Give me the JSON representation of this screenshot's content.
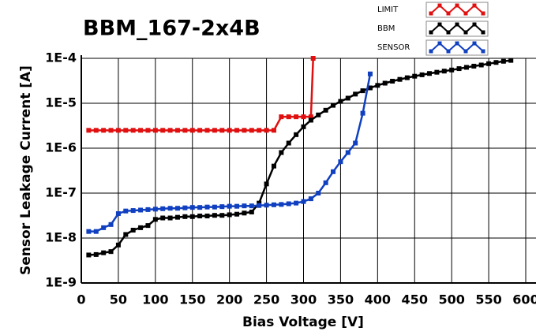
{
  "chart_data": {
    "type": "line",
    "title": "BBM_167-2x4B",
    "x_label": "Bias Voltage [V]",
    "y_label": "Sensor Leakage Current [A]",
    "xlim": [
      0,
      600
    ],
    "xticks": [
      0,
      50,
      100,
      150,
      200,
      250,
      300,
      350,
      400,
      450,
      500,
      550,
      600
    ],
    "ylim": [
      1e-09,
      0.0001
    ],
    "log_y": true,
    "yticks": [
      {
        "value": 1e-09,
        "label": "1E-9"
      },
      {
        "value": 1e-08,
        "label": "1E-8"
      },
      {
        "value": 1e-07,
        "label": "1E-7"
      },
      {
        "value": 1e-06,
        "label": "1E-6"
      },
      {
        "value": 1e-05,
        "label": "1E-5"
      },
      {
        "value": 0.0001,
        "label": "1E-4"
      }
    ],
    "grid": true,
    "legend": "top-right",
    "series": [
      {
        "name": "LIMIT",
        "color": "#e01010",
        "x": [
          10,
          20,
          30,
          40,
          50,
          60,
          70,
          80,
          90,
          100,
          110,
          120,
          130,
          140,
          150,
          160,
          170,
          180,
          190,
          200,
          210,
          220,
          230,
          240,
          250,
          260,
          270,
          280,
          290,
          300,
          310,
          313
        ],
        "values": [
          2.5e-06,
          2.5e-06,
          2.5e-06,
          2.5e-06,
          2.5e-06,
          2.5e-06,
          2.5e-06,
          2.5e-06,
          2.5e-06,
          2.5e-06,
          2.5e-06,
          2.5e-06,
          2.5e-06,
          2.5e-06,
          2.5e-06,
          2.5e-06,
          2.5e-06,
          2.5e-06,
          2.5e-06,
          2.5e-06,
          2.5e-06,
          2.5e-06,
          2.5e-06,
          2.5e-06,
          2.5e-06,
          2.5e-06,
          5e-06,
          5e-06,
          5e-06,
          5e-06,
          5e-06,
          0.0001
        ]
      },
      {
        "name": "BBM",
        "color": "#000000",
        "x": [
          10,
          20,
          30,
          40,
          50,
          60,
          70,
          80,
          90,
          100,
          110,
          120,
          130,
          140,
          150,
          160,
          170,
          180,
          190,
          200,
          210,
          220,
          230,
          240,
          250,
          260,
          270,
          280,
          290,
          300,
          310,
          320,
          330,
          340,
          350,
          360,
          370,
          380,
          390,
          400,
          410,
          420,
          430,
          440,
          450,
          460,
          470,
          480,
          490,
          500,
          510,
          520,
          530,
          540,
          550,
          560,
          570,
          580
        ],
        "values": [
          4.2e-09,
          4.3e-09,
          4.7e-09,
          5e-09,
          7e-09,
          1.2e-08,
          1.5e-08,
          1.7e-08,
          1.9e-08,
          2.6e-08,
          2.8e-08,
          2.8e-08,
          2.9e-08,
          3e-08,
          3e-08,
          3.1e-08,
          3.1e-08,
          3.2e-08,
          3.2e-08,
          3.3e-08,
          3.4e-08,
          3.6e-08,
          3.8e-08,
          6e-08,
          1.6e-07,
          4e-07,
          8e-07,
          1.3e-06,
          2e-06,
          3e-06,
          4.2e-06,
          5.5e-06,
          7e-06,
          9e-06,
          1.1e-05,
          1.3e-05,
          1.6e-05,
          1.9e-05,
          2.2e-05,
          2.5e-05,
          2.8e-05,
          3.1e-05,
          3.4e-05,
          3.7e-05,
          4e-05,
          4.3e-05,
          4.6e-05,
          4.9e-05,
          5.2e-05,
          5.5e-05,
          5.9e-05,
          6.3e-05,
          6.7e-05,
          7.1e-05,
          7.6e-05,
          8.1e-05,
          8.6e-05,
          9e-05
        ]
      },
      {
        "name": "SENSOR",
        "color": "#1040c0",
        "x": [
          10,
          20,
          30,
          40,
          50,
          60,
          70,
          80,
          90,
          100,
          110,
          120,
          130,
          140,
          150,
          160,
          170,
          180,
          190,
          200,
          210,
          220,
          230,
          240,
          250,
          260,
          270,
          280,
          290,
          300,
          310,
          320,
          330,
          340,
          350,
          360,
          370,
          380,
          390
        ],
        "values": [
          1.4e-08,
          1.4e-08,
          1.7e-08,
          2e-08,
          3.5e-08,
          4e-08,
          4.1e-08,
          4.2e-08,
          4.3e-08,
          4.4e-08,
          4.5e-08,
          4.6e-08,
          4.6e-08,
          4.7e-08,
          4.8e-08,
          4.8e-08,
          4.9e-08,
          4.9e-08,
          5e-08,
          5.1e-08,
          5.1e-08,
          5.2e-08,
          5.2e-08,
          5.3e-08,
          5.4e-08,
          5.5e-08,
          5.6e-08,
          5.8e-08,
          6e-08,
          6.5e-08,
          7.5e-08,
          1e-07,
          1.7e-07,
          3e-07,
          5e-07,
          8e-07,
          1.3e-06,
          6e-06,
          4.5e-05
        ]
      }
    ]
  }
}
